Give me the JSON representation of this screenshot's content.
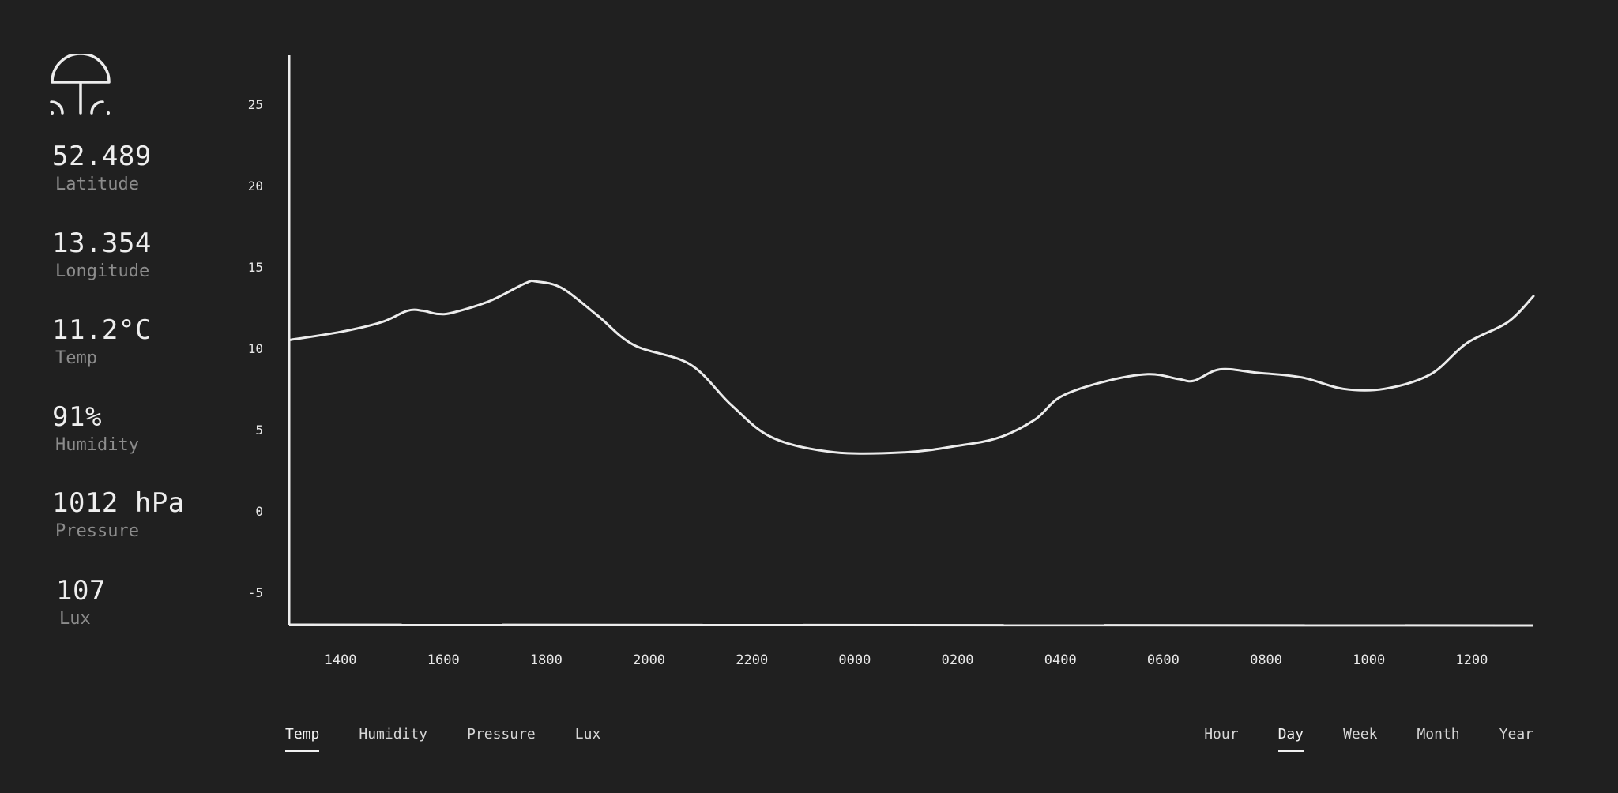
{
  "sidebar": {
    "logo_icon": "umbrella-mushroom-icon",
    "stats": [
      {
        "value": "52.489",
        "label": "Latitude"
      },
      {
        "value": "13.354",
        "label": "Longitude"
      },
      {
        "value": "11.2°C",
        "label": "Temp"
      },
      {
        "value": "91%",
        "label": "Humidity"
      },
      {
        "value": "1012 hPa",
        "label": "Pressure"
      },
      {
        "value": "107",
        "label": "Lux"
      }
    ]
  },
  "metric_tabs": [
    {
      "label": "Temp",
      "active": true
    },
    {
      "label": "Humidity",
      "active": false
    },
    {
      "label": "Pressure",
      "active": false
    },
    {
      "label": "Lux",
      "active": false
    }
  ],
  "range_tabs": [
    {
      "label": "Hour",
      "active": false
    },
    {
      "label": "Day",
      "active": true
    },
    {
      "label": "Week",
      "active": false
    },
    {
      "label": "Month",
      "active": false
    },
    {
      "label": "Year",
      "active": false
    }
  ],
  "colors": {
    "background": "#202020",
    "line": "#ececec",
    "label_muted": "#8c8c8c"
  },
  "chart_data": {
    "type": "line",
    "title": "",
    "xlabel": "",
    "ylabel": "",
    "ylim": [
      -7,
      28
    ],
    "yticks": [
      25,
      20,
      15,
      10,
      5,
      0,
      -5
    ],
    "xlim": [
      0,
      24.2
    ],
    "xticks": [
      {
        "label": "1400",
        "x": 1
      },
      {
        "label": "1600",
        "x": 3
      },
      {
        "label": "1800",
        "x": 5
      },
      {
        "label": "2000",
        "x": 7
      },
      {
        "label": "2200",
        "x": 9
      },
      {
        "label": "0000",
        "x": 11
      },
      {
        "label": "0200",
        "x": 13
      },
      {
        "label": "0400",
        "x": 15
      },
      {
        "label": "0600",
        "x": 17
      },
      {
        "label": "0800",
        "x": 19
      },
      {
        "label": "1000",
        "x": 21
      },
      {
        "label": "1200",
        "x": 23
      }
    ],
    "grid": false,
    "series": [
      {
        "x": [
          0,
          1.0,
          1.8,
          2.3,
          2.6,
          2.9,
          3.2,
          3.9,
          4.6,
          4.8,
          5.3,
          6.0,
          6.7,
          7.8,
          8.6,
          9.4,
          10.6,
          12.0,
          13.0,
          13.8,
          14.5,
          15.0,
          15.8,
          16.7,
          17.3,
          17.6,
          18.1,
          18.8,
          19.7,
          20.5,
          21.3,
          22.2,
          22.9,
          23.7,
          24.2
        ],
        "y": [
          10.5,
          11.0,
          11.6,
          12.3,
          12.3,
          12.1,
          12.2,
          12.9,
          14.0,
          14.1,
          13.7,
          12.0,
          10.2,
          9.0,
          6.5,
          4.5,
          3.6,
          3.6,
          4.0,
          4.5,
          5.6,
          7.0,
          7.9,
          8.4,
          8.1,
          8.0,
          8.7,
          8.5,
          8.2,
          7.5,
          7.5,
          8.4,
          10.3,
          11.6,
          13.2
        ]
      }
    ]
  }
}
